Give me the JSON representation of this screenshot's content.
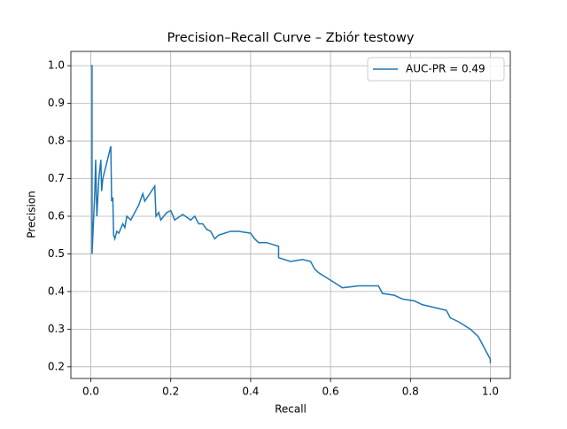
{
  "chart_data": {
    "type": "line",
    "title": "Precision–Recall Curve – Zbiór testowy",
    "x_label": "Recall",
    "y_label": "Precision",
    "x": [
      0,
      0.003,
      0.003,
      0.01,
      0.012,
      0.015,
      0.02,
      0.025,
      0.027,
      0.03,
      0.05,
      0.052,
      0.055,
      0.057,
      0.06,
      0.065,
      0.07,
      0.08,
      0.085,
      0.09,
      0.1,
      0.12,
      0.13,
      0.135,
      0.16,
      0.163,
      0.17,
      0.175,
      0.19,
      0.2,
      0.21,
      0.23,
      0.25,
      0.26,
      0.27,
      0.28,
      0.29,
      0.3,
      0.31,
      0.32,
      0.35,
      0.37,
      0.4,
      0.41,
      0.42,
      0.44,
      0.47,
      0.47,
      0.5,
      0.53,
      0.55,
      0.56,
      0.57,
      0.6,
      0.63,
      0.67,
      0.72,
      0.73,
      0.76,
      0.78,
      0.81,
      0.83,
      0.85,
      0.89,
      0.9,
      0.92,
      0.95,
      0.97,
      0.98,
      0.99,
      1.0,
      1.0
    ],
    "series": [
      {
        "name": "AUC-PR = 0.49",
        "color": "#1f77b4",
        "values": [
          1.0,
          1.0,
          0.5,
          0.667,
          0.75,
          0.6,
          0.7,
          0.75,
          0.667,
          0.7,
          0.786,
          0.64,
          0.65,
          0.55,
          0.54,
          0.56,
          0.555,
          0.58,
          0.57,
          0.6,
          0.59,
          0.63,
          0.66,
          0.64,
          0.68,
          0.6,
          0.61,
          0.59,
          0.61,
          0.615,
          0.59,
          0.605,
          0.59,
          0.6,
          0.58,
          0.58,
          0.565,
          0.56,
          0.54,
          0.55,
          0.56,
          0.56,
          0.555,
          0.54,
          0.53,
          0.53,
          0.52,
          0.49,
          0.48,
          0.485,
          0.48,
          0.46,
          0.45,
          0.43,
          0.41,
          0.415,
          0.415,
          0.395,
          0.39,
          0.38,
          0.375,
          0.365,
          0.36,
          0.35,
          0.33,
          0.32,
          0.3,
          0.28,
          0.26,
          0.24,
          0.22,
          0.21
        ]
      }
    ],
    "xlim": [
      -0.05,
      1.05
    ],
    "ylim": [
      0.169,
      1.038
    ],
    "xticks": [
      {
        "value": 0,
        "label": "0.0"
      },
      0.2,
      0.4,
      0.6,
      0.8,
      {
        "value": 1,
        "label": "1.0"
      }
    ],
    "yticks": [
      0.2,
      0.3,
      0.4,
      0.5,
      0.6,
      0.7,
      0.8,
      0.9,
      {
        "value": 1,
        "label": "1.0"
      }
    ],
    "grid": true,
    "legend": "upper right"
  }
}
